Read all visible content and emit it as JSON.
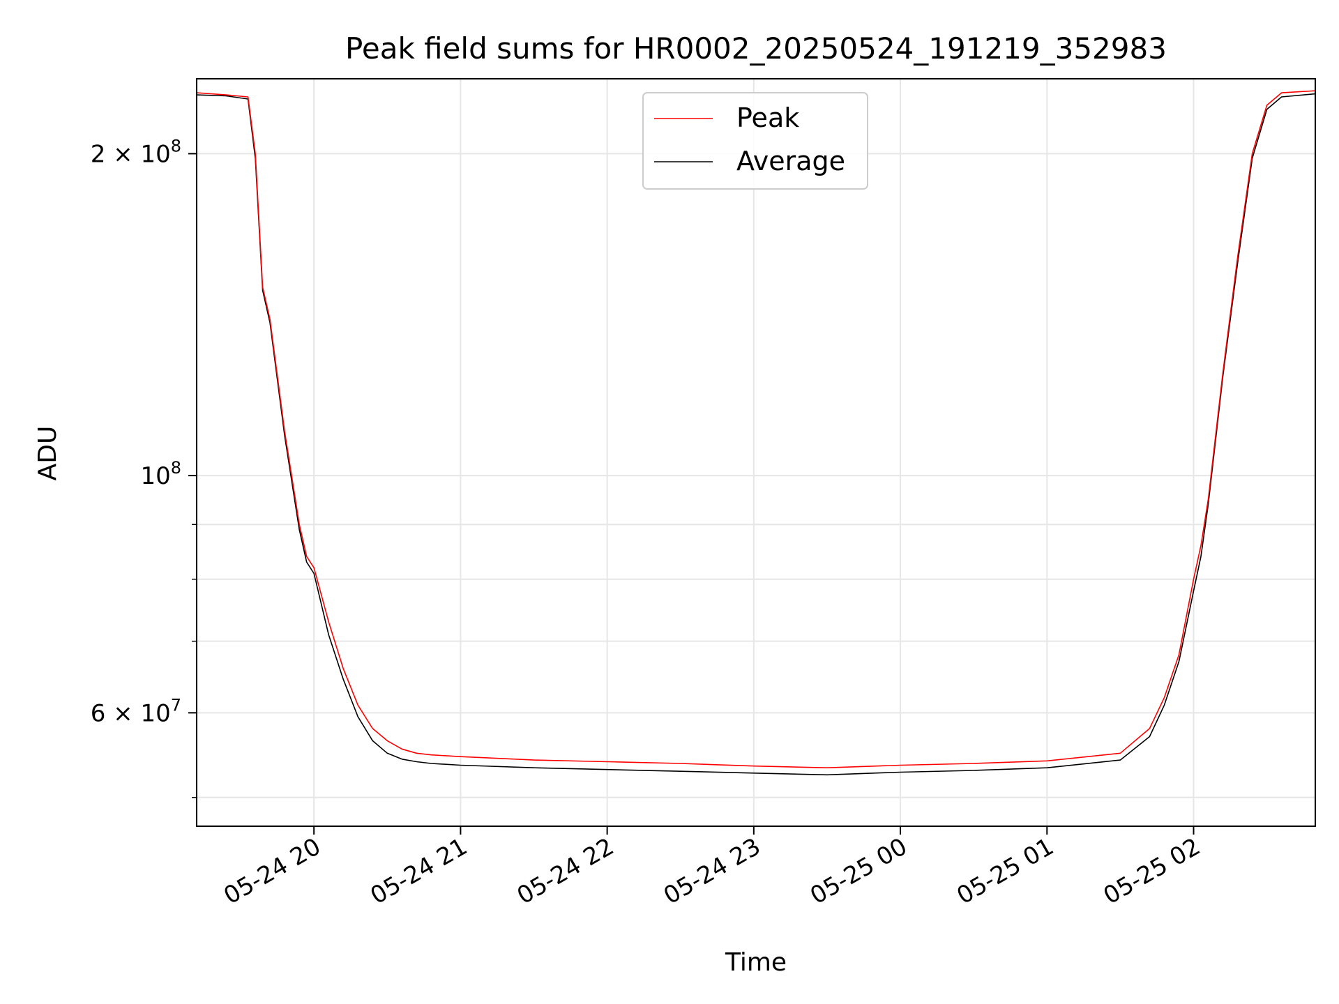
{
  "chart_data": {
    "type": "line",
    "title": "Peak field sums for HR0002_20250524_191219_352983",
    "xlabel": "Time",
    "ylabel": "ADU",
    "yscale": "log",
    "ylim": [
      47000000,
      235000000
    ],
    "xlim_hours": [
      -0.8,
      6.83
    ],
    "grid": true,
    "legend_position": "top-center",
    "x_ticks": [
      {
        "hour": 0,
        "label": "05-24 20"
      },
      {
        "hour": 1,
        "label": "05-24 21"
      },
      {
        "hour": 2,
        "label": "05-24 22"
      },
      {
        "hour": 3,
        "label": "05-24 23"
      },
      {
        "hour": 4,
        "label": "05-25 00"
      },
      {
        "hour": 5,
        "label": "05-25 01"
      },
      {
        "hour": 6,
        "label": "05-25 02"
      }
    ],
    "y_ticks": [
      {
        "value": 200000000,
        "label_base": "2 × 10",
        "label_exp": "8"
      },
      {
        "value": 100000000,
        "label_base": "10",
        "label_exp": "8"
      },
      {
        "value": 60000000,
        "label_base": "6 × 10",
        "label_exp": "7"
      }
    ],
    "y_minor_ticks": [
      50000000,
      70000000,
      80000000,
      90000000
    ],
    "series": [
      {
        "name": "Peak",
        "color": "#ff0000",
        "x": [
          -0.8,
          -0.6,
          -0.45,
          -0.4,
          -0.35,
          -0.3,
          -0.2,
          -0.1,
          -0.05,
          0.0,
          0.1,
          0.2,
          0.3,
          0.4,
          0.5,
          0.6,
          0.7,
          0.8,
          1.0,
          1.5,
          2.0,
          2.5,
          3.0,
          3.5,
          4.0,
          4.5,
          5.0,
          5.5,
          5.7,
          5.8,
          5.9,
          6.0,
          6.05,
          6.1,
          6.2,
          6.3,
          6.4,
          6.5,
          6.6,
          6.83
        ],
        "values": [
          228000000,
          227000000,
          226000000,
          200000000,
          150000000,
          140000000,
          110000000,
          90000000,
          84000000,
          82000000,
          73000000,
          66000000,
          61000000,
          58000000,
          56500000,
          55500000,
          55000000,
          54800000,
          54600000,
          54200000,
          54000000,
          53800000,
          53500000,
          53300000,
          53600000,
          53800000,
          54100000,
          55000000,
          58000000,
          62000000,
          68000000,
          80000000,
          86000000,
          95000000,
          125000000,
          160000000,
          200000000,
          222000000,
          228000000,
          229000000
        ]
      },
      {
        "name": "Average",
        "color": "#000000",
        "x": [
          -0.8,
          -0.6,
          -0.45,
          -0.4,
          -0.35,
          -0.3,
          -0.2,
          -0.1,
          -0.05,
          0.0,
          0.1,
          0.2,
          0.3,
          0.4,
          0.5,
          0.6,
          0.7,
          0.8,
          1.0,
          1.5,
          2.0,
          2.5,
          3.0,
          3.5,
          4.0,
          4.5,
          5.0,
          5.5,
          5.7,
          5.8,
          5.9,
          6.0,
          6.05,
          6.1,
          6.2,
          6.3,
          6.4,
          6.5,
          6.6,
          6.83
        ],
        "values": [
          227000000,
          226500000,
          225000000,
          198000000,
          149000000,
          139000000,
          109000000,
          89000000,
          83000000,
          81000000,
          71000000,
          64500000,
          59500000,
          56500000,
          55000000,
          54300000,
          54000000,
          53800000,
          53600000,
          53300000,
          53100000,
          52900000,
          52700000,
          52500000,
          52800000,
          53000000,
          53300000,
          54200000,
          57000000,
          61000000,
          67000000,
          78000000,
          84000000,
          94000000,
          124000000,
          158000000,
          198000000,
          220000000,
          226000000,
          227500000
        ]
      }
    ]
  }
}
